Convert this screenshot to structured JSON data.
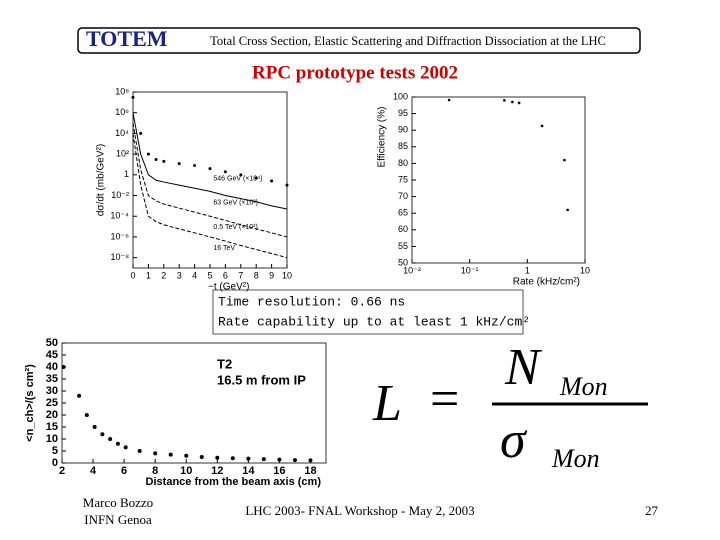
{
  "header": {
    "logo": "TOTEM",
    "text": "Total Cross Section, Elastic Scattering and Diffraction Dissociation at the LHC"
  },
  "title": "RPC prototype tests 2002",
  "notes": [
    "Time resolution:  0.66 ns",
    "Rate capability up to at least  1  kHz/cm²"
  ],
  "formula": {
    "lhs": "L",
    "operator": "=",
    "numerator": "N",
    "numerator_sub": "Mon",
    "denominator": "σ",
    "denominator_sub": "Mon"
  },
  "footer": {
    "author": "Marco Bozzo",
    "affiliation": "INFN Genoa",
    "event": "LHC 2003- FNAL Workshop - May 2, 2003",
    "page": "27"
  },
  "chart_data": [
    {
      "type": "line",
      "x_label": "−t (GeV²)",
      "y_label": "dσ/dt (mb/GeV²)",
      "ylog": true,
      "color": "#000000",
      "xlim": [
        0,
        10
      ],
      "xticks": [
        0,
        1,
        2,
        3,
        4,
        5,
        6,
        7,
        8,
        9,
        10
      ],
      "ylim": [
        1e-09,
        100000000.0
      ],
      "yticks": [
        {
          "value": 100000000.0,
          "label": "10⁸"
        },
        {
          "value": 1000000.0,
          "label": "10⁶"
        },
        {
          "value": 10000.0,
          "label": "10⁴"
        },
        {
          "value": 100,
          "label": "10²"
        },
        1,
        {
          "value": 0.01,
          "label": "10⁻²"
        },
        {
          "value": 0.0001,
          "label": "10⁻⁴"
        },
        {
          "value": 1e-06,
          "label": "10⁻⁶"
        },
        {
          "value": 1e-08,
          "label": "10⁻⁸"
        }
      ],
      "x": [
        0,
        0.5,
        1,
        1.5,
        2,
        3,
        4,
        5,
        6,
        7,
        8,
        9,
        10
      ],
      "series": [
        {
          "name": "546 GeV (×10⁴)",
          "style": "points",
          "values": [
            30000000.0,
            10000.0,
            100,
            30,
            20,
            12,
            8,
            4,
            2,
            1,
            0.5,
            0.25,
            0.1
          ]
        },
        {
          "name": "63 GeV (×10²)",
          "style": "solid",
          "values": [
            1000000.0,
            100,
            1,
            0.3,
            0.2,
            0.1,
            0.05,
            0.025,
            0.01,
            0.005,
            0.0025,
            0.001,
            0.0005
          ]
        },
        {
          "name": "0.5 TeV (×10²)",
          "style": "dashed",
          "values": [
            100000.0,
            3,
            0.01,
            0.003,
            0.0015,
            0.0006,
            0.00025,
            0.0001,
            4e-05,
            1.5e-05,
            6e-06,
            2.5e-06,
            1e-06
          ]
        },
        {
          "name": "16 TeV",
          "style": "dashed",
          "values": [
            10000.0,
            0.1,
            0.0001,
            3e-05,
            1.5e-05,
            6e-06,
            2.5e-06,
            1e-06,
            4e-07,
            1.5e-07,
            6e-08,
            2.5e-08,
            1e-08
          ]
        }
      ]
    },
    {
      "type": "scatter",
      "x_label": "Rate (kHz/cm²)",
      "y_label": "Efficiency (%)",
      "xlog": true,
      "color": "#000000",
      "xlim": [
        0.01,
        10
      ],
      "xticks": [
        {
          "value": 0.01,
          "label": "10⁻²"
        },
        {
          "value": 0.1,
          "label": "10⁻¹"
        },
        1,
        10
      ],
      "ylim": [
        50,
        100
      ],
      "yticks": [
        50,
        55,
        60,
        65,
        70,
        75,
        80,
        85,
        90,
        95,
        100
      ],
      "series": [
        {
          "x": [
            0.044,
            0.4,
            0.55,
            0.72,
            1.8,
            4.4,
            5
          ],
          "values": [
            99.1,
            99,
            98.5,
            98.2,
            91.3,
            81,
            66
          ]
        }
      ]
    },
    {
      "type": "scatter",
      "x_label": "Distance from the beam axis (cm)",
      "y_label": "<n_ch>/(s cm²)",
      "annotations": [
        "T2",
        "16.5 m from IP"
      ],
      "color": "#000000",
      "xlim": [
        2,
        19
      ],
      "xticks": [
        2,
        4,
        6,
        8,
        10,
        12,
        14,
        16,
        18
      ],
      "ylim": [
        0,
        50
      ],
      "yticks": [
        0,
        5,
        10,
        15,
        20,
        25,
        30,
        35,
        40,
        45,
        50
      ],
      "series": [
        {
          "x": [
            2.1,
            3.1,
            3.6,
            4.1,
            4.6,
            5.1,
            5.6,
            6.1,
            7,
            8,
            9,
            10,
            11,
            12,
            13,
            14,
            15,
            16,
            17,
            18
          ],
          "values": [
            40,
            28,
            20,
            15,
            12,
            10,
            8,
            6.5,
            5,
            4,
            3.5,
            3,
            2.5,
            2.2,
            2,
            1.8,
            1.6,
            1.4,
            1.2,
            1.1
          ]
        }
      ]
    }
  ]
}
